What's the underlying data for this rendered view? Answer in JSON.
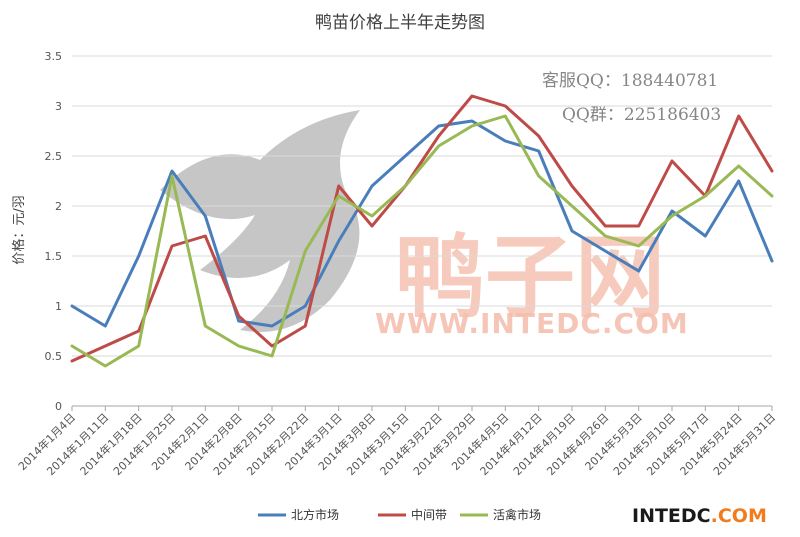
{
  "chart_data": {
    "type": "line",
    "title": "鸭苗价格上半年走势图",
    "ylabel": "价格：元/羽",
    "xlabel": "",
    "ylim": [
      0,
      3.5
    ],
    "yticks": [
      "0",
      "0.5",
      "1",
      "1.5",
      "2",
      "2.5",
      "3",
      "3.5"
    ],
    "grid": true,
    "legend_position": "bottom",
    "categories": [
      "2014年1月4日",
      "2014年1月11日",
      "2014年1月18日",
      "2014年1月25日",
      "2014年2月1日",
      "2014年2月8日",
      "2014年2月15日",
      "2014年2月22日",
      "2014年3月1日",
      "2014年3月8日",
      "2014年3月15日",
      "2014年3月22日",
      "2014年3月29日",
      "2014年4月5日",
      "2014年4月12日",
      "2014年4月19日",
      "2014年4月26日",
      "2014年5月3日",
      "2014年5月10日",
      "2014年5月17日",
      "2014年5月24日",
      "2014年5月31日"
    ],
    "series": [
      {
        "name": "北方市场",
        "color": "#4a7ebb",
        "values": [
          1.0,
          0.8,
          1.5,
          2.35,
          1.9,
          0.85,
          0.8,
          1.0,
          1.65,
          2.2,
          2.5,
          2.8,
          2.85,
          2.65,
          2.55,
          1.75,
          1.55,
          1.35,
          1.95,
          1.7,
          2.25,
          1.45
        ]
      },
      {
        "name": "中间带",
        "color": "#be4b48",
        "values": [
          0.45,
          0.6,
          0.75,
          1.6,
          1.7,
          0.9,
          0.6,
          0.8,
          2.2,
          1.8,
          2.2,
          2.7,
          3.1,
          3.0,
          2.7,
          2.2,
          1.8,
          1.8,
          2.45,
          2.1,
          2.9,
          2.35
        ]
      },
      {
        "name": "活禽市场",
        "color": "#98b954",
        "values": [
          0.6,
          0.4,
          0.6,
          2.3,
          0.8,
          0.6,
          0.5,
          1.55,
          2.1,
          1.9,
          2.2,
          2.6,
          2.8,
          2.9,
          2.3,
          2.0,
          1.7,
          1.6,
          1.9,
          2.1,
          2.4,
          2.1
        ]
      }
    ]
  },
  "watermark": {
    "qq_service": "客服QQ：188440781",
    "qq_group": "QQ群：225186403",
    "site_url": "WWW.INTEDC.COM",
    "logo_text": "鸭子网",
    "brand": "INTEDC.COM",
    "colors": {
      "logo_red": "#f3b6a2",
      "brand_dark": "#1a1a1a",
      "brand_orange": "#f07c1e"
    }
  }
}
